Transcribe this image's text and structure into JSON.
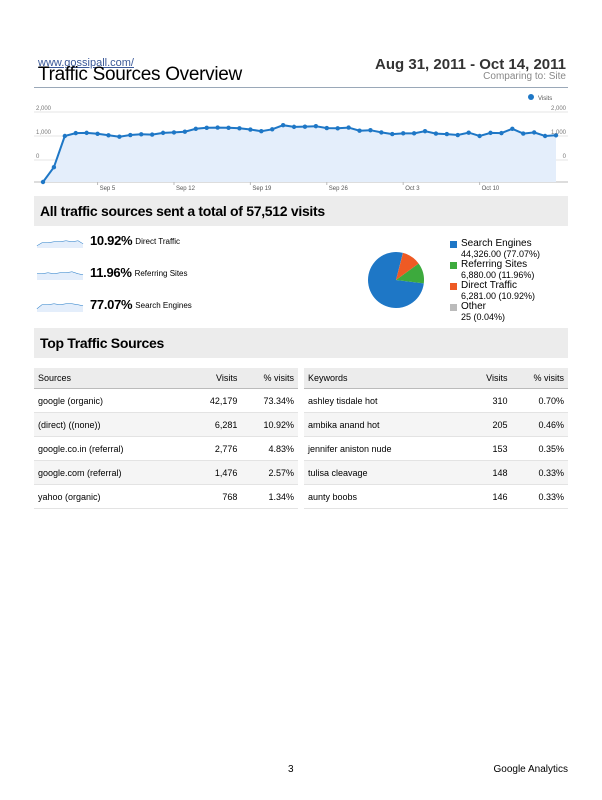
{
  "header": {
    "site_url": "www.gossipall.com/",
    "title": "Traffic Sources Overview",
    "date_range": "Aug 31, 2011 - Oct 14, 2011",
    "comparing": "Comparing to: Site"
  },
  "chart_data": {
    "type": "line",
    "legend": "Visits",
    "legend_position": "top-right",
    "ylim": [
      0,
      2000
    ],
    "yticks_left": [
      "2,000",
      "1,000",
      "0"
    ],
    "yticks_right": [
      "2,000",
      "1,000",
      "0"
    ],
    "xtick_labels": [
      "Sep 5",
      "Sep 12",
      "Sep 19",
      "Sep 26",
      "Oct 3",
      "Oct 10"
    ],
    "xtick_indices": [
      5,
      12,
      19,
      26,
      33,
      40
    ],
    "series": [
      {
        "name": "Visits",
        "color": "#1e77c6",
        "values": [
          -1000,
          -300,
          1000,
          1120,
          1130,
          1090,
          1030,
          970,
          1040,
          1070,
          1060,
          1130,
          1150,
          1180,
          1300,
          1340,
          1350,
          1340,
          1320,
          1270,
          1200,
          1280,
          1450,
          1380,
          1390,
          1410,
          1330,
          1320,
          1350,
          1220,
          1240,
          1150,
          1080,
          1110,
          1110,
          1200,
          1100,
          1080,
          1040,
          1140,
          1000,
          1130,
          1120,
          1300,
          1100,
          1150,
          1000,
          1030
        ]
      }
    ]
  },
  "summary": {
    "title_prefix": "All traffic sources sent a total of ",
    "total_visits": "57,512",
    "title_suffix": " visits"
  },
  "sources": [
    {
      "pct": "10.92%",
      "name": "Direct Traffic"
    },
    {
      "pct": "11.96%",
      "name": "Referring Sites"
    },
    {
      "pct": "77.07%",
      "name": "Search Engines"
    }
  ],
  "pie": {
    "slices": [
      {
        "name": "Search Engines",
        "value": 44326,
        "label": "44,326.00 (77.07%)",
        "color": "#1e77c6"
      },
      {
        "name": "Referring Sites",
        "value": 6880,
        "label": "6,880.00 (11.96%)",
        "color": "#3daa3d"
      },
      {
        "name": "Direct Traffic",
        "value": 6281,
        "label": "6,281.00 (10.92%)",
        "color": "#ee5a24"
      },
      {
        "name": "Other",
        "value": 25,
        "label": "25 (0.04%)",
        "color": "#bbbbbb"
      }
    ]
  },
  "top_sources": {
    "title": "Top Traffic Sources",
    "sources_table": {
      "headers": [
        "Sources",
        "Visits",
        "% visits"
      ],
      "rows": [
        [
          "google (organic)",
          "42,179",
          "73.34%"
        ],
        [
          "(direct) ((none))",
          "6,281",
          "10.92%"
        ],
        [
          "google.co.in (referral)",
          "2,776",
          "4.83%"
        ],
        [
          "google.com (referral)",
          "1,476",
          "2.57%"
        ],
        [
          "yahoo (organic)",
          "768",
          "1.34%"
        ]
      ]
    },
    "keywords_table": {
      "headers": [
        "Keywords",
        "Visits",
        "% visits"
      ],
      "rows": [
        [
          "ashley tisdale hot",
          "310",
          "0.70%"
        ],
        [
          "ambika anand hot",
          "205",
          "0.46%"
        ],
        [
          "jennifer aniston nude",
          "153",
          "0.35%"
        ],
        [
          "tulisa cleavage",
          "148",
          "0.33%"
        ],
        [
          "aunty boobs",
          "146",
          "0.33%"
        ]
      ]
    }
  },
  "footer": {
    "page_number": "3",
    "brand": "Google Analytics"
  }
}
